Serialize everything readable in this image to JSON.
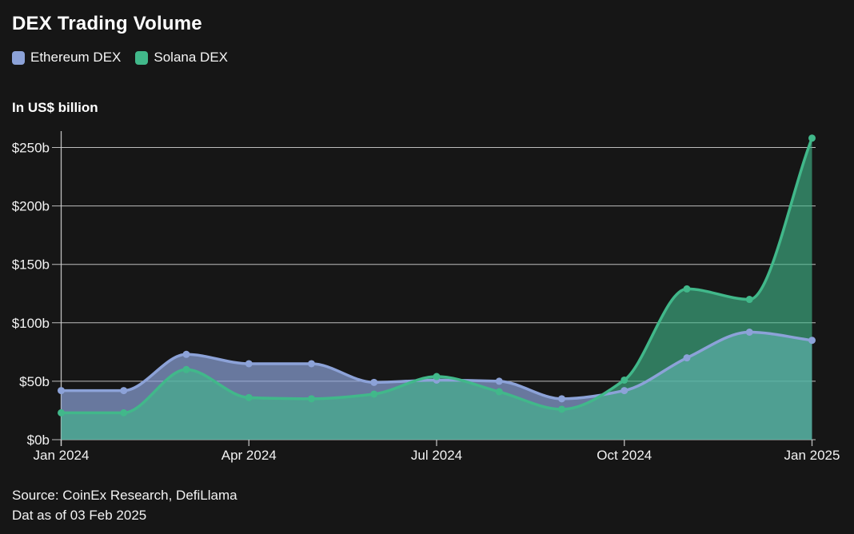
{
  "title": "DEX Trading Volume",
  "unit_label": "In US$ billion",
  "legend": [
    {
      "label": "Ethereum DEX",
      "color": "#8ca2d8"
    },
    {
      "label": "Solana DEX",
      "color": "#41b88a"
    }
  ],
  "source": {
    "line1": "Source: CoinEx Research, DefiLlama",
    "line2": "Dat as of 03 Feb 2025"
  },
  "colors": {
    "background": "#161616",
    "text": "#f2f2f2",
    "grid": "#d0d0d0",
    "ethereum": "#8ca2d8",
    "ethereum_fill": "rgba(140,162,216,0.70)",
    "solana": "#41b88a",
    "solana_fill": "rgba(65,184,138,0.62)"
  },
  "chart_data": {
    "type": "area",
    "title": "DEX Trading Volume",
    "ylabel": "In US$ billion",
    "grid": true,
    "legend_position": "top-left",
    "categories": [
      "Jan 2024",
      "Feb 2024",
      "Mar 2024",
      "Apr 2024",
      "May 2024",
      "Jun 2024",
      "Jul 2024",
      "Aug 2024",
      "Sep 2024",
      "Oct 2024",
      "Nov 2024",
      "Dec 2024",
      "Jan 2025"
    ],
    "series": [
      {
        "name": "Ethereum DEX",
        "color": "#8ca2d8",
        "fill": "rgba(140,162,216,0.70)",
        "values": [
          42,
          42,
          73,
          65,
          65,
          49,
          51,
          50,
          35,
          42,
          70,
          92,
          85
        ]
      },
      {
        "name": "Solana DEX",
        "color": "#41b88a",
        "fill": "rgba(65,184,138,0.62)",
        "values": [
          23,
          23,
          60,
          36,
          35,
          39,
          54,
          41,
          26,
          51,
          129,
          120,
          258
        ]
      }
    ],
    "ylim": [
      0,
      260
    ],
    "yticks": [
      0,
      50,
      100,
      150,
      200,
      250
    ],
    "y_tick_labels": [
      "$0b",
      "$50b",
      "$100b",
      "$150b",
      "$200b",
      "$250b"
    ],
    "x_tick_every": 3,
    "x_tick_labels": [
      "Jan 2024",
      "Apr 2024",
      "Jul 2024",
      "Oct 2024",
      "Jan 2025"
    ]
  }
}
